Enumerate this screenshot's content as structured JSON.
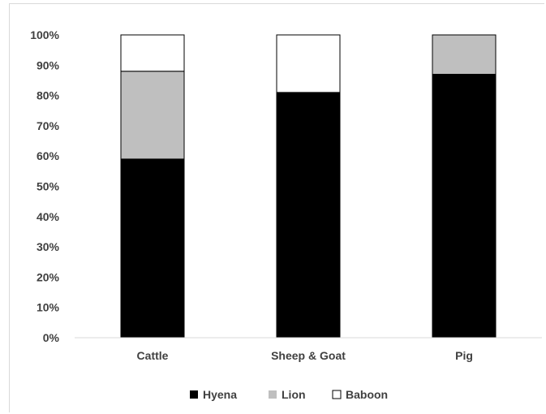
{
  "chart_data": {
    "type": "bar",
    "stacked": true,
    "percent": true,
    "categories": [
      "Cattle",
      "Sheep & Goat",
      "Pig"
    ],
    "series": [
      {
        "name": "Hyena",
        "color": "#000000",
        "values": [
          59,
          81,
          87
        ]
      },
      {
        "name": "Lion",
        "color": "#bfbfbf",
        "values": [
          29,
          0,
          13
        ]
      },
      {
        "name": "Baboon",
        "color": "#ffffff",
        "values": [
          12,
          19,
          0
        ]
      }
    ],
    "ylim": [
      0,
      100
    ],
    "yticks": [
      "0%",
      "10%",
      "20%",
      "30%",
      "40%",
      "50%",
      "60%",
      "70%",
      "80%",
      "90%",
      "100%"
    ],
    "title": "",
    "xlabel": "",
    "ylabel": "",
    "grid": false,
    "legend_position": "bottom"
  }
}
